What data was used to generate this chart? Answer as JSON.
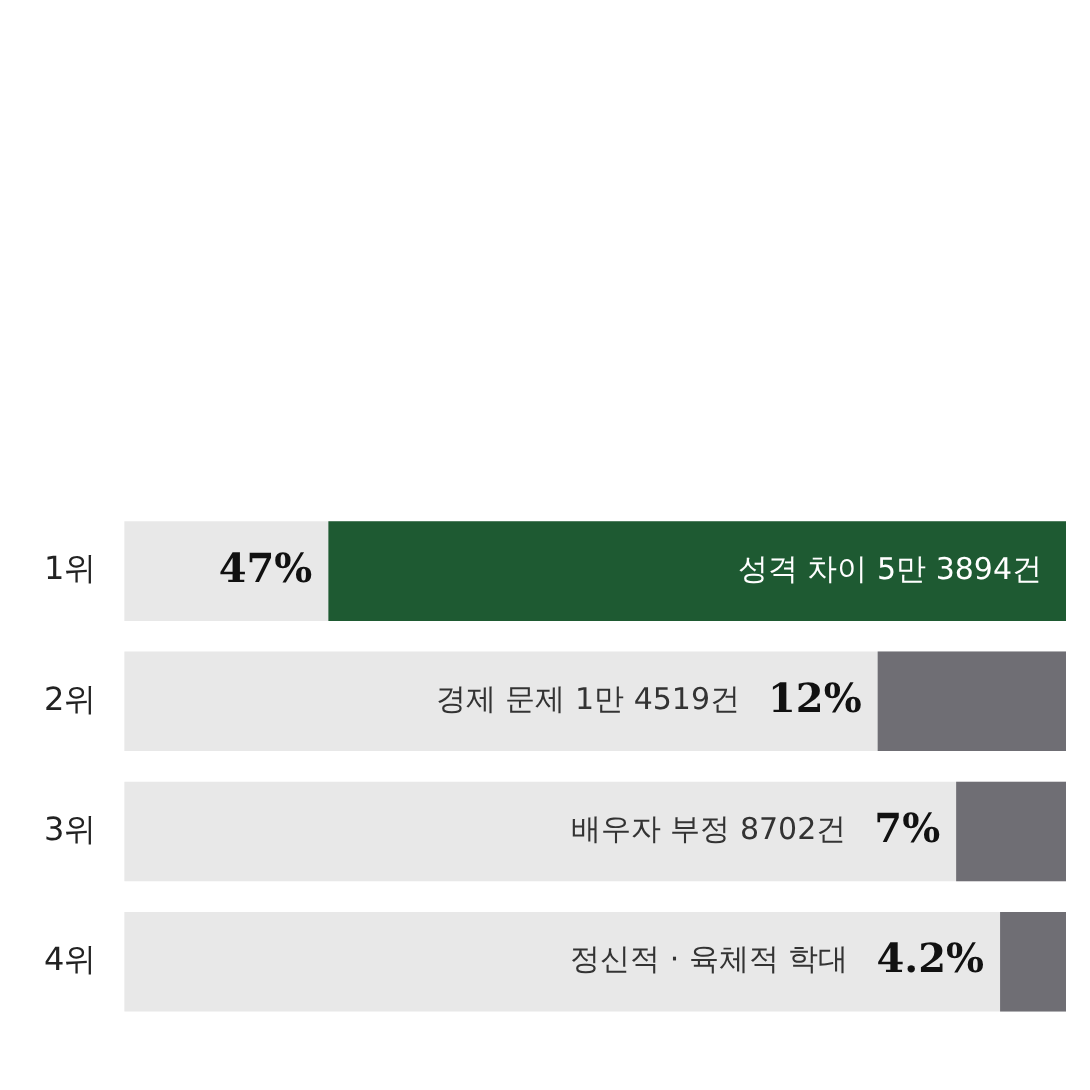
{
  "chart_data": {
    "type": "bar",
    "orientation": "horizontal",
    "categories": [
      "1위",
      "2위",
      "3위",
      "4위"
    ],
    "values": [
      47,
      12,
      7,
      4.2
    ],
    "colors": [
      "#1e5a32",
      "#6f6e74",
      "#6f6e74",
      "#6f6e74"
    ],
    "value_labels": [
      "47%",
      "12%",
      "7%",
      "4.2%"
    ],
    "xlim": [
      60,
      0
    ],
    "annotations": [
      "성격 차이 5만 3894건",
      "경제 문제 1만 4519건",
      "배우자 부정 8702건",
      "정신적 · 육체적 학대"
    ],
    "grid": false,
    "legend": false
  }
}
